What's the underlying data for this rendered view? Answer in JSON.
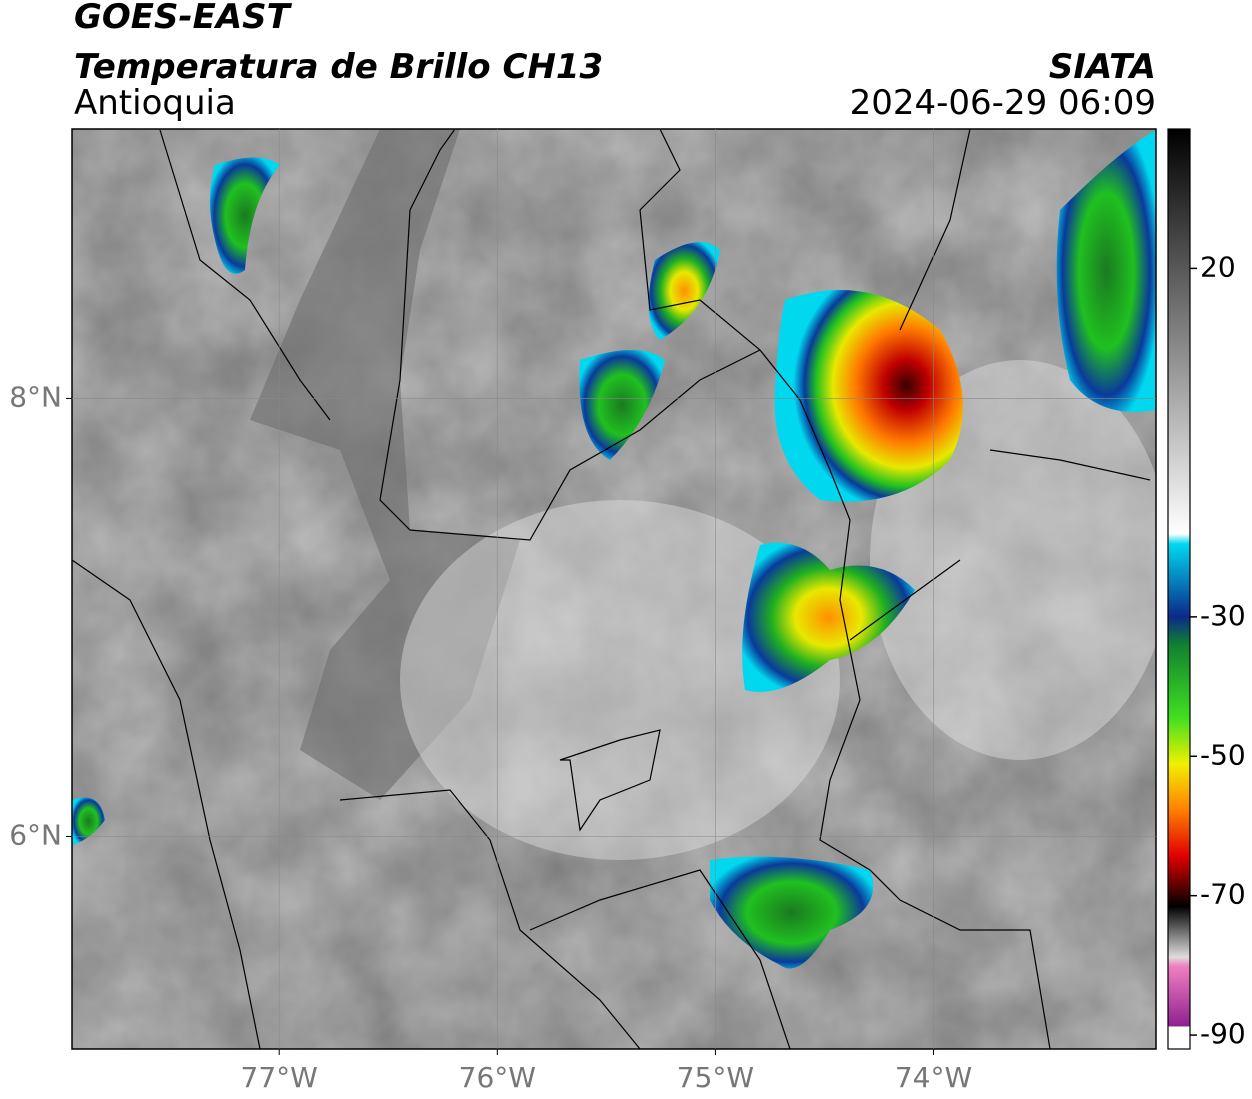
{
  "header": {
    "title": "GOES-EAST",
    "subtitle": "Temperatura de Brillo CH13",
    "region": "Antioquia",
    "source": "SIATA",
    "datetime": "2024-06-29 06:09"
  },
  "map": {
    "xlim": [
      -77.95,
      -72.98
    ],
    "ylim": [
      5.03,
      9.23
    ],
    "xticks": [
      {
        "value": -77,
        "label": "77°W"
      },
      {
        "value": -76,
        "label": "76°W"
      },
      {
        "value": -75,
        "label": "75°W"
      },
      {
        "value": -74,
        "label": "74°W"
      }
    ],
    "yticks": [
      {
        "value": 6,
        "label": "6°N"
      },
      {
        "value": 8,
        "label": "8°N"
      }
    ],
    "grid": true
  },
  "colorbar": {
    "lim": [
      -92,
      40
    ],
    "ticks": [
      20,
      -30,
      -50,
      -70,
      -90
    ]
  }
}
